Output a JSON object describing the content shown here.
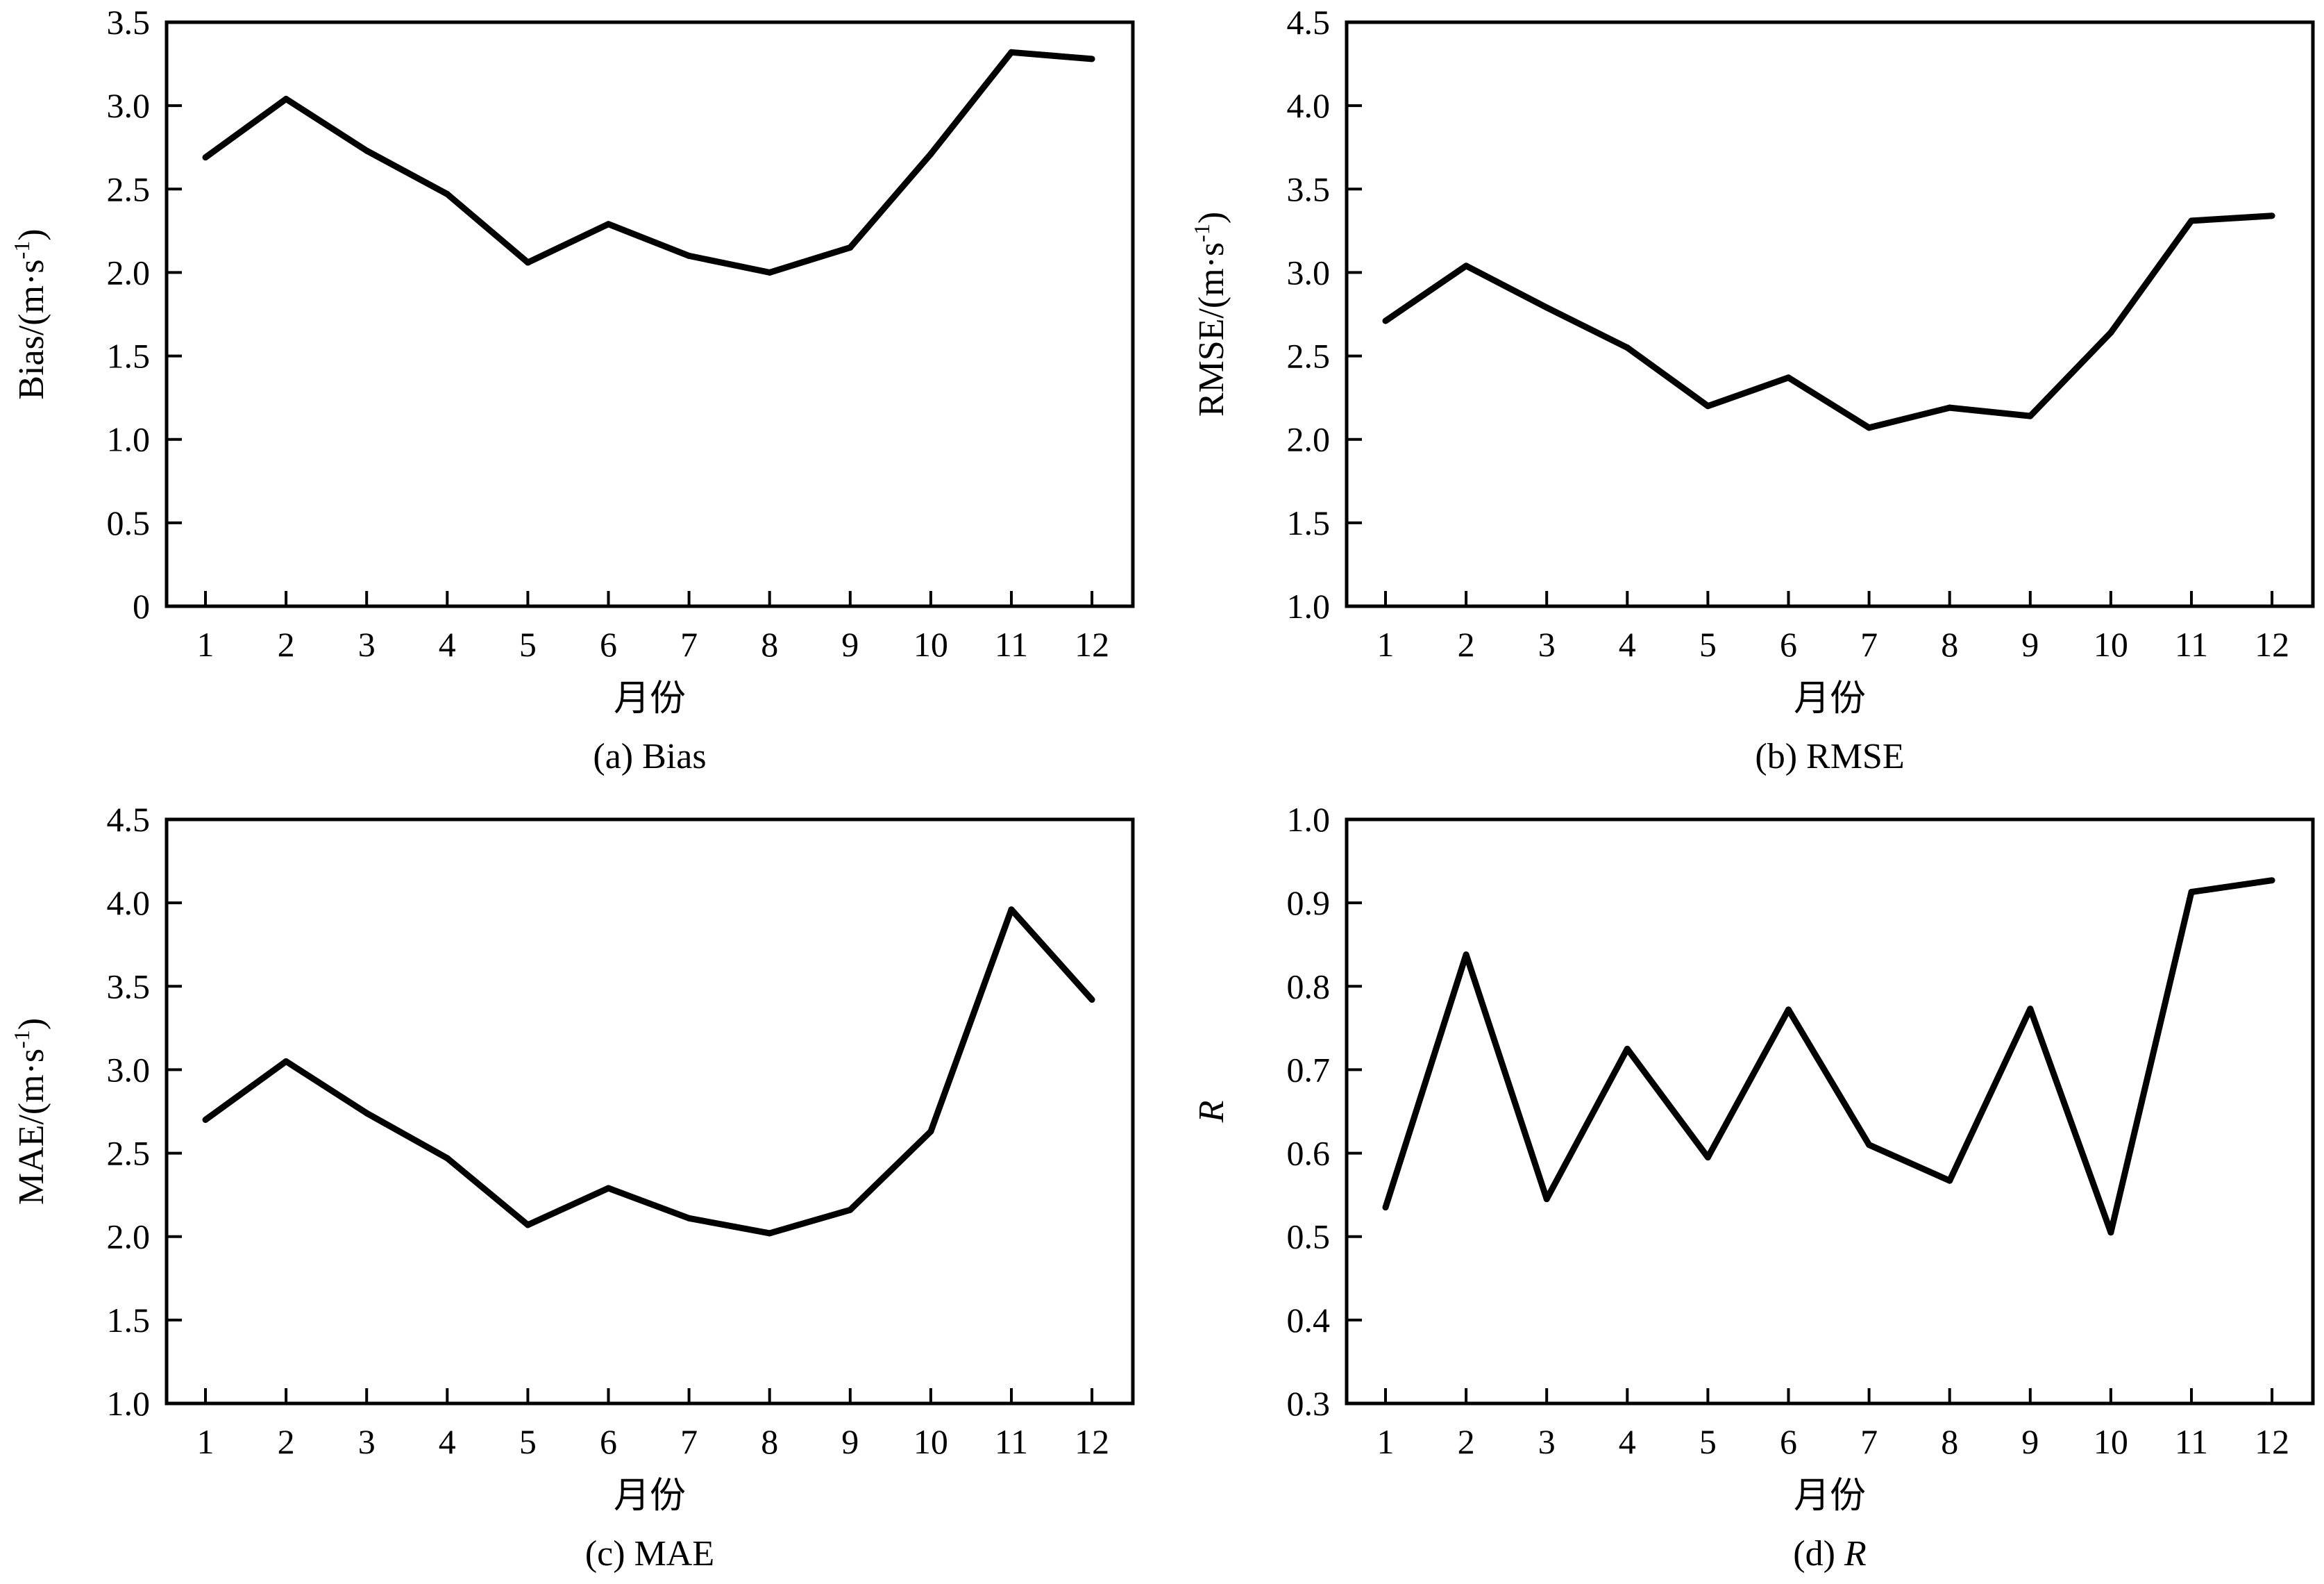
{
  "chart_data": [
    {
      "id": "a",
      "type": "line",
      "x": [
        1,
        2,
        3,
        4,
        5,
        6,
        7,
        8,
        9,
        10,
        11,
        12
      ],
      "series": [
        {
          "values": [
            2.69,
            3.04,
            2.73,
            2.47,
            2.06,
            2.29,
            2.1,
            2.0,
            2.15,
            2.71,
            3.32,
            3.28
          ]
        }
      ],
      "xlabel": "月份",
      "ylabel": "Bias/(m·s",
      "ylabel_sup": "-1",
      "ylabel_end": ")",
      "caption": "(a) Bias",
      "caption_italic": "",
      "ylim": [
        0,
        3.5
      ],
      "yticks": [
        "0",
        "0.5",
        "1.0",
        "1.5",
        "2.0",
        "2.5",
        "3.0",
        "3.5"
      ],
      "xticks": [
        "1",
        "2",
        "3",
        "4",
        "5",
        "6",
        "7",
        "8",
        "9",
        "10",
        "11",
        "12"
      ],
      "ylabel_italic": false,
      "grid": false
    },
    {
      "id": "b",
      "type": "line",
      "x": [
        1,
        2,
        3,
        4,
        5,
        6,
        7,
        8,
        9,
        10,
        11,
        12
      ],
      "series": [
        {
          "values": [
            2.71,
            3.04,
            2.79,
            2.55,
            2.2,
            2.37,
            2.07,
            2.19,
            2.14,
            2.64,
            3.31,
            3.34
          ]
        }
      ],
      "xlabel": "月份",
      "ylabel": "RMSE/(m·s",
      "ylabel_sup": "-1",
      "ylabel_end": ")",
      "caption": "(b) RMSE",
      "caption_italic": "",
      "ylim": [
        1.0,
        4.5
      ],
      "yticks": [
        "1.0",
        "1.5",
        "2.0",
        "2.5",
        "3.0",
        "3.5",
        "4.0",
        "4.5"
      ],
      "xticks": [
        "1",
        "2",
        "3",
        "4",
        "5",
        "6",
        "7",
        "8",
        "9",
        "10",
        "11",
        "12"
      ],
      "ylabel_italic": false,
      "grid": false
    },
    {
      "id": "c",
      "type": "line",
      "x": [
        1,
        2,
        3,
        4,
        5,
        6,
        7,
        8,
        9,
        10,
        11,
        12
      ],
      "series": [
        {
          "values": [
            2.7,
            3.05,
            2.74,
            2.47,
            2.07,
            2.29,
            2.11,
            2.02,
            2.16,
            2.63,
            3.96,
            3.42
          ]
        }
      ],
      "xlabel": "月份",
      "ylabel": "MAE/(m·s",
      "ylabel_sup": "-1",
      "ylabel_end": ")",
      "caption": "(c) MAE",
      "caption_italic": "",
      "ylim": [
        1.0,
        4.5
      ],
      "yticks": [
        "1.0",
        "1.5",
        "2.0",
        "2.5",
        "3.0",
        "3.5",
        "4.0",
        "4.5"
      ],
      "xticks": [
        "1",
        "2",
        "3",
        "4",
        "5",
        "6",
        "7",
        "8",
        "9",
        "10",
        "11",
        "12"
      ],
      "ylabel_italic": false,
      "grid": false
    },
    {
      "id": "d",
      "type": "line",
      "x": [
        1,
        2,
        3,
        4,
        5,
        6,
        7,
        8,
        9,
        10,
        11,
        12
      ],
      "series": [
        {
          "values": [
            0.535,
            0.838,
            0.545,
            0.725,
            0.595,
            0.772,
            0.61,
            0.567,
            0.773,
            0.505,
            0.913,
            0.927
          ]
        }
      ],
      "xlabel": "月份",
      "ylabel": "R",
      "ylabel_sup": "",
      "ylabel_end": "",
      "caption": "(d) ",
      "caption_italic": "R",
      "ylim": [
        0.3,
        1.0
      ],
      "yticks": [
        "0.3",
        "0.4",
        "0.5",
        "0.6",
        "0.7",
        "0.8",
        "0.9",
        "1.0"
      ],
      "xticks": [
        "1",
        "2",
        "3",
        "4",
        "5",
        "6",
        "7",
        "8",
        "9",
        "10",
        "11",
        "12"
      ],
      "ylabel_italic": true,
      "grid": false
    }
  ]
}
